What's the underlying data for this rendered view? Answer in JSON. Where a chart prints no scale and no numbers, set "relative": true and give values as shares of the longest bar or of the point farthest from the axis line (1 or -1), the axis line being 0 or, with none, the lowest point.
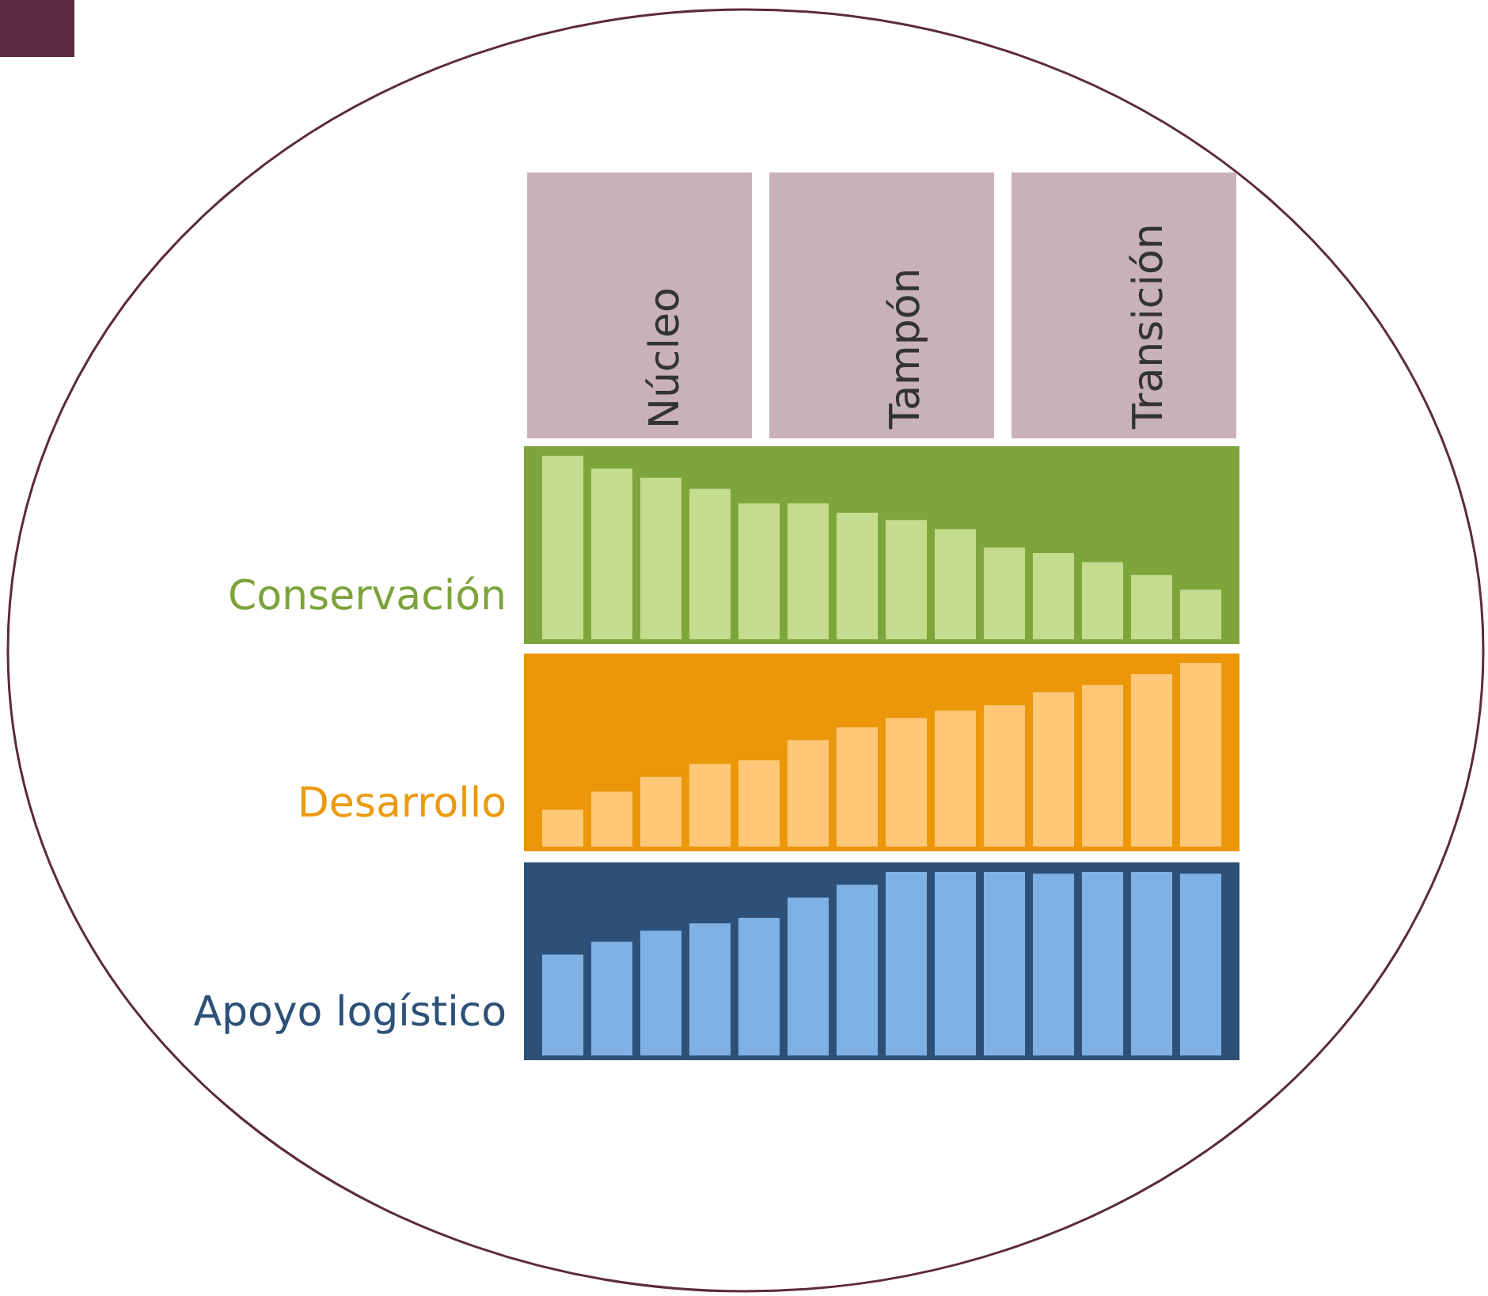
{
  "chart_data": [
    {
      "type": "bar",
      "relative": true,
      "ylabel": "Conservación",
      "annotations": [
        "Núcleo",
        "Tampón",
        "Transición"
      ],
      "categories": [
        null,
        null,
        null,
        null,
        null,
        null,
        null,
        null,
        null,
        null,
        null,
        null,
        null,
        null
      ],
      "series": [
        {
          "color": "#c4dc8e",
          "values": [
            1,
            0.93,
            0.88,
            0.82,
            0.74,
            0.74,
            0.69,
            0.65,
            0.6,
            0.5,
            0.47,
            0.42,
            0.35,
            0.27
          ]
        }
      ],
      "legend": false,
      "tick_labels": false
    },
    {
      "type": "bar",
      "relative": true,
      "ylabel": "Desarrollo",
      "categories": [
        null,
        null,
        null,
        null,
        null,
        null,
        null,
        null,
        null,
        null,
        null,
        null,
        null,
        null
      ],
      "series": [
        {
          "color": "#fec878",
          "values": [
            0.2,
            0.3,
            0.38,
            0.45,
            0.47,
            0.58,
            0.65,
            0.7,
            0.74,
            0.77,
            0.84,
            0.88,
            0.94,
            1
          ]
        }
      ],
      "legend": false,
      "tick_labels": false
    },
    {
      "type": "bar",
      "relative": true,
      "ylabel": "Apoyo logístico",
      "categories": [
        null,
        null,
        null,
        null,
        null,
        null,
        null,
        null,
        null,
        null,
        null,
        null,
        null,
        null
      ],
      "series": [
        {
          "color": "#7fb1e5",
          "values": [
            0.55,
            0.62,
            0.68,
            0.72,
            0.75,
            0.86,
            0.93,
            1,
            1,
            1,
            0.99,
            1,
            1,
            0.99
          ]
        }
      ],
      "legend": false,
      "tick_labels": false
    }
  ]
}
